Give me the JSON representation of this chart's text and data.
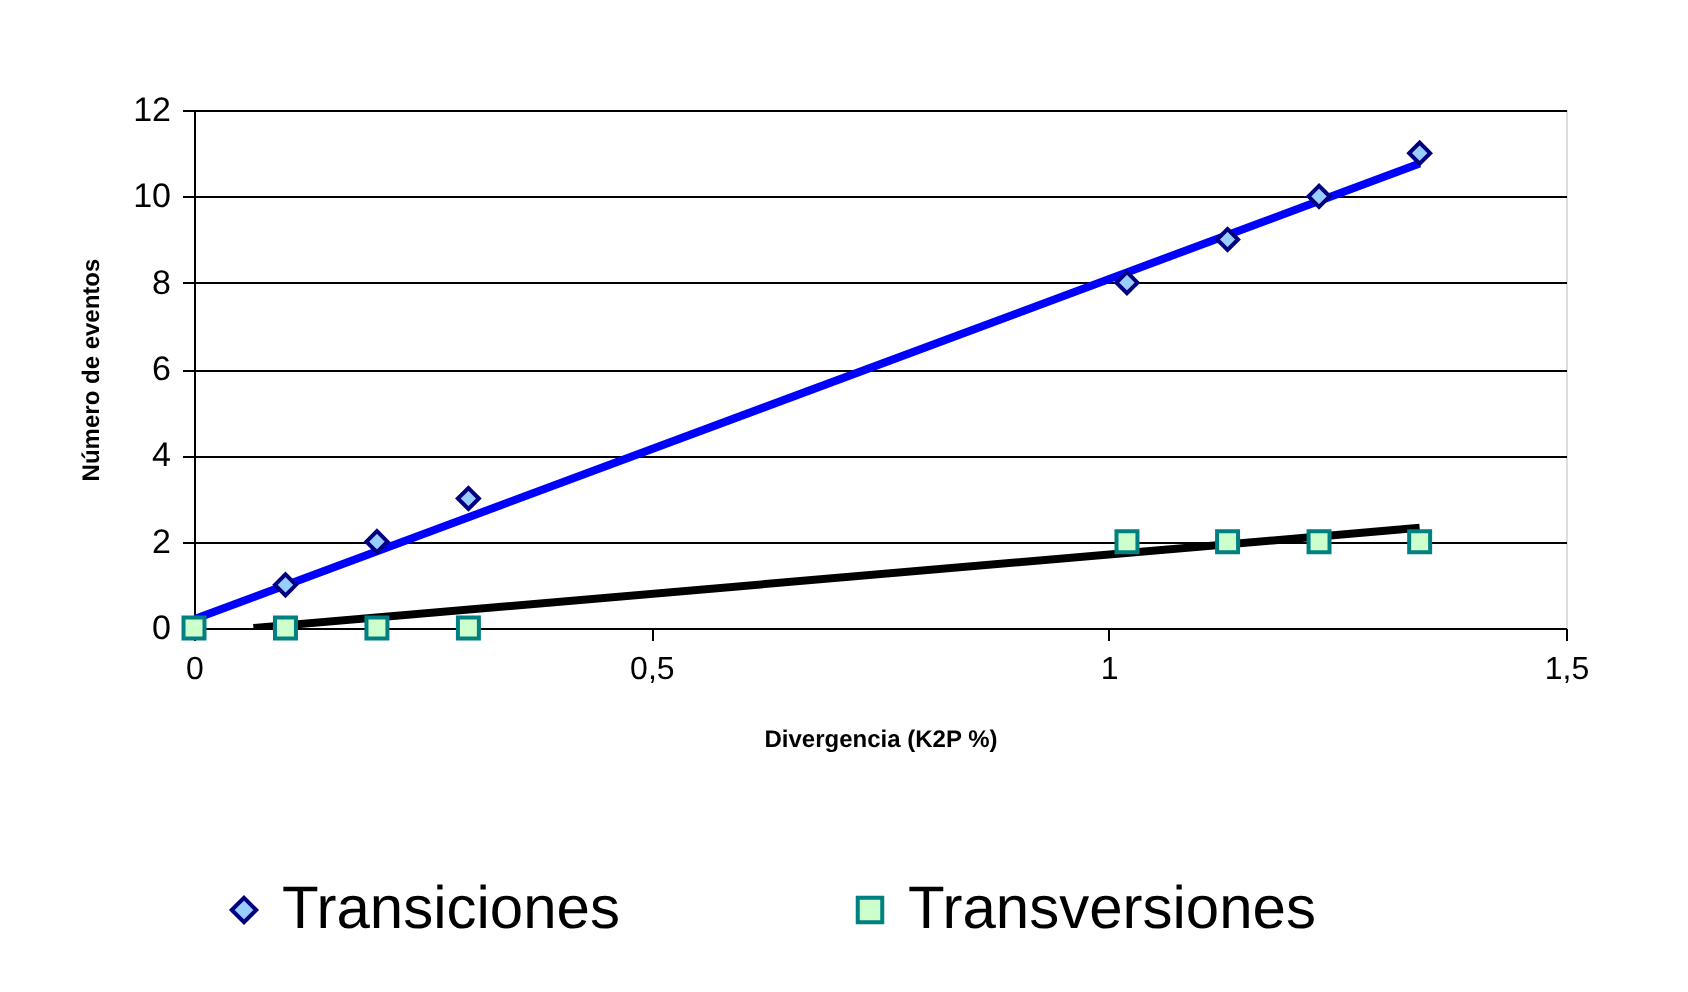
{
  "chart_data": {
    "type": "scatter",
    "xlabel": "Divergencia (K2P %)",
    "ylabel": "Número de eventos",
    "xlim": [
      0,
      1.5
    ],
    "ylim": [
      0,
      12
    ],
    "xticks": [
      0,
      {
        "value": 0.5,
        "label": "0,5"
      },
      1,
      {
        "value": 1.5,
        "label": "1,5"
      }
    ],
    "yticks": [
      0,
      2,
      4,
      6,
      8,
      10,
      12
    ],
    "grid": "y",
    "legend": "bottom",
    "series": [
      {
        "type": "line",
        "color": "#0000ff",
        "x": [
          0,
          1.34
        ],
        "values": [
          0.2,
          10.76
        ]
      },
      {
        "type": "line",
        "color": "#000000",
        "x": [
          0.065,
          1.34
        ],
        "values": [
          0,
          2.32
        ]
      },
      {
        "name": "Transiciones",
        "marker": "diamond",
        "color": "#99ccff",
        "x": [
          0.1,
          0.2,
          0.3,
          1.02,
          1.13,
          1.23,
          1.34
        ],
        "values": [
          1,
          2,
          3,
          8,
          9,
          10,
          11
        ]
      },
      {
        "name": "Transversiones",
        "marker": "square",
        "color": "#ccffcc",
        "x": [
          0,
          0.1,
          0.2,
          0.3,
          1.02,
          1.13,
          1.23,
          1.34
        ],
        "values": [
          0,
          0,
          0,
          0,
          2,
          2,
          2,
          2
        ]
      }
    ]
  }
}
